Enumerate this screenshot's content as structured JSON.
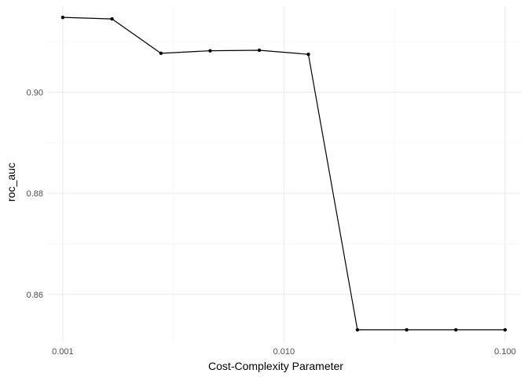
{
  "chart_data": {
    "type": "line",
    "title": "",
    "xlabel": "Cost-Complexity Parameter",
    "ylabel": "roc_auc",
    "x_scale": "log10",
    "xlim": [
      0.00085,
      0.117
    ],
    "ylim": [
      0.8505,
      0.917
    ],
    "x_ticks": [
      {
        "value": 0.001,
        "label": "0.001"
      },
      {
        "value": 0.01,
        "label": "0.010"
      },
      {
        "value": 0.1,
        "label": "0.100"
      }
    ],
    "x_minor_ticks": [
      0.00316,
      0.0316
    ],
    "y_ticks": [
      {
        "value": 0.86,
        "label": "0.86"
      },
      {
        "value": 0.88,
        "label": "0.88"
      },
      {
        "value": 0.9,
        "label": "0.90"
      }
    ],
    "y_minor_ticks": [
      0.87,
      0.89,
      0.91
    ],
    "grid": true,
    "legend": "none",
    "colors": {
      "line": "#000000",
      "point": "#000000",
      "grid_major": "#ebebeb",
      "grid_minor": "#f5f5f5",
      "tick_label": "#4d4d4d",
      "axis_title": "#000000"
    },
    "series": [
      {
        "x": [
          0.001,
          0.00167,
          0.00278,
          0.00464,
          0.00774,
          0.0129,
          0.0215,
          0.0359,
          0.0599,
          0.1
        ],
        "y": [
          0.9148,
          0.9145,
          0.9077,
          0.9082,
          0.9083,
          0.9075,
          0.853,
          0.853,
          0.853,
          0.853
        ]
      }
    ]
  }
}
